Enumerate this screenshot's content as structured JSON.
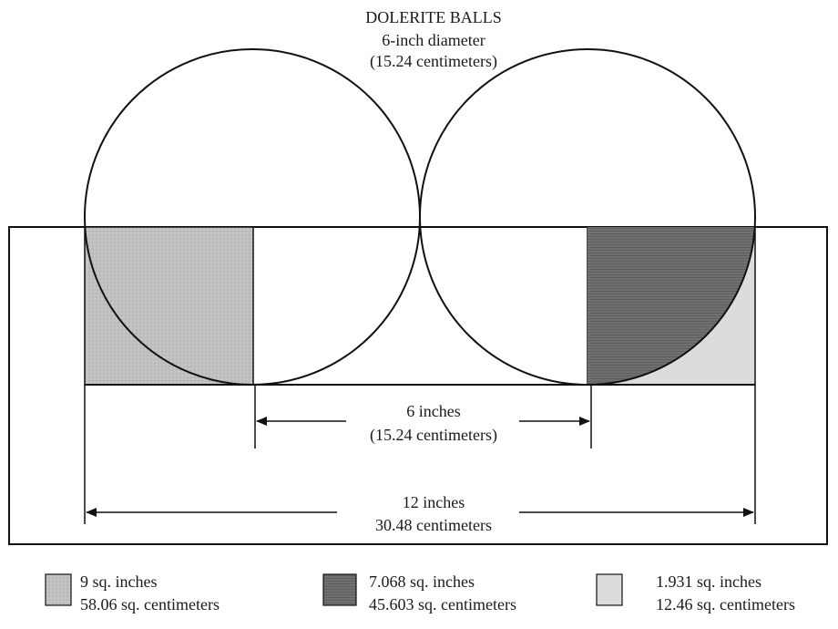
{
  "title": "DOLERITE BALLS",
  "diameter_label_1": "6-inch diameter",
  "diameter_label_2": "(15.24 centimeters)",
  "dim_small_1": "6 inches",
  "dim_small_2": "(15.24 centimeters)",
  "dim_large_1": "12 inches",
  "dim_large_2": "30.48 centimeters",
  "legend": [
    {
      "line1": "9 sq. inches",
      "line2": "58.06 sq. centimeters",
      "color": "#c4c4c4"
    },
    {
      "line1": "7.068 sq. inches",
      "line2": "45.603 sq. centimeters",
      "color": "#6a6a6a"
    },
    {
      "line1": "1.931 sq. inches",
      "line2": "12.46 sq. centimeters",
      "color": "#dedede"
    }
  ]
}
